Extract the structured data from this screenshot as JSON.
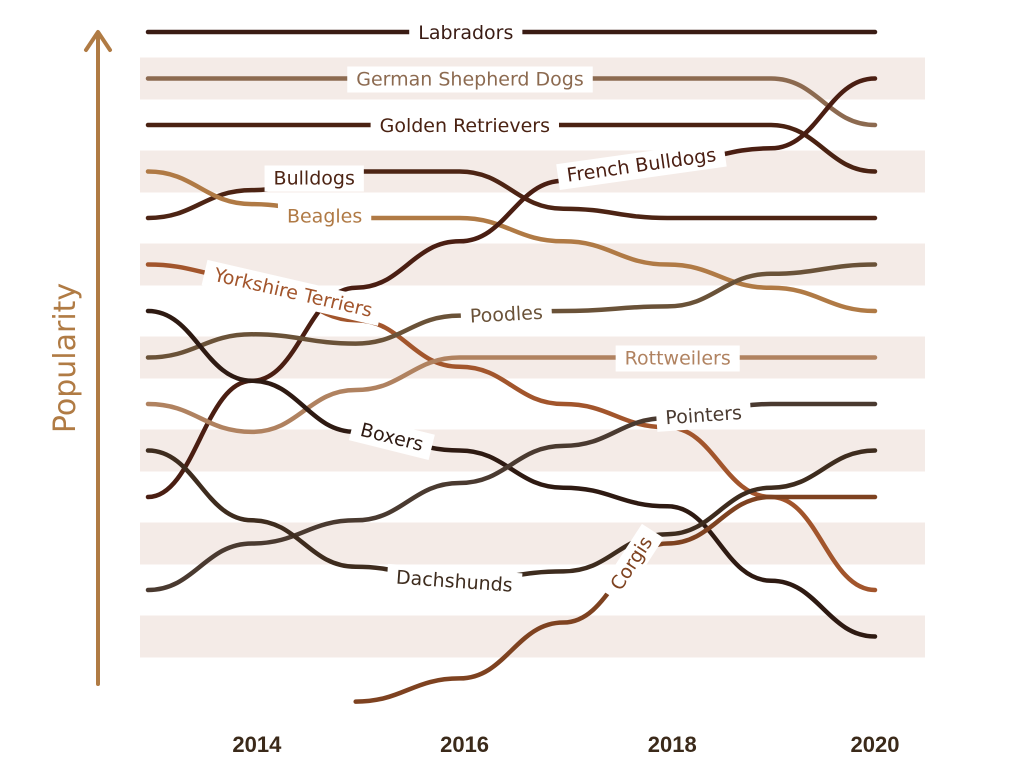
{
  "chart_data": {
    "type": "line",
    "subtype": "bump",
    "ylabel": "Popularity",
    "xlabel": "",
    "x": [
      2013,
      2014,
      2015,
      2016,
      2017,
      2018,
      2019,
      2020
    ],
    "x_ticks": [
      "2014",
      "2016",
      "2018",
      "2020"
    ],
    "x_tick_values": [
      2014,
      2016,
      2018,
      2020
    ],
    "rank_range": [
      1,
      14
    ],
    "y_axis_arrow": true,
    "alternating_bands": true,
    "band_color": "#f4ebe7",
    "axis_color": "#b07b44",
    "tick_color": "#3b2a1a",
    "series": [
      {
        "name": "Labradors",
        "ranks": [
          1,
          1,
          1,
          1,
          1,
          1,
          1,
          1
        ],
        "color": "#3a1c14",
        "label_x": 2016.06,
        "label_angle": 0
      },
      {
        "name": "German Shepherd Dogs",
        "ranks": [
          2,
          2,
          2,
          2,
          2,
          2,
          2,
          3
        ],
        "color": "#8c6a50",
        "label_x": 2016.1,
        "label_angle": 0
      },
      {
        "name": "Golden Retrievers",
        "ranks": [
          3,
          3,
          3,
          3,
          3,
          3,
          3,
          4
        ],
        "color": "#4a2212",
        "label_x": 2016.05,
        "label_angle": 0
      },
      {
        "name": "Bulldogs",
        "ranks": [
          5,
          4.4,
          4,
          4,
          4.8,
          5,
          5,
          5
        ],
        "color": "#4d2414",
        "label_x": 2014.6,
        "label_angle": 0
      },
      {
        "name": "Beagles",
        "ranks": [
          4,
          4.7,
          5,
          5,
          5.5,
          6,
          6.5,
          7
        ],
        "color": "#b07a45",
        "label_x": 2014.7,
        "label_angle": 0
      },
      {
        "name": "French Bulldogs",
        "ranks": [
          11,
          8.5,
          6.5,
          5.5,
          4.2,
          3.8,
          3.5,
          2
        ],
        "color": "#4a1e12",
        "label_x": 2017.75,
        "label_angle": -8
      },
      {
        "name": "Yorkshire Terriers",
        "ranks": [
          6,
          6.3,
          7.2,
          8.2,
          9,
          9.5,
          11,
          13
        ],
        "color": "#a2552c",
        "label_x": 2014.4,
        "label_angle": 13
      },
      {
        "name": "Poodles",
        "ranks": [
          8,
          7.5,
          7.7,
          7.1,
          7,
          6.9,
          6.2,
          6
        ],
        "color": "#6a5238",
        "label_x": 2016.45,
        "label_angle": -3
      },
      {
        "name": "Rottweilers",
        "ranks": [
          9,
          9.6,
          8.7,
          8,
          8,
          8,
          8,
          8
        ],
        "color": "#b08260",
        "label_x": 2018.1,
        "label_angle": 0
      },
      {
        "name": "Boxers",
        "ranks": [
          7,
          8.5,
          9.6,
          10,
          10.8,
          11.2,
          12.8,
          14
        ],
        "color": "#2e1a12",
        "label_x": 2015.35,
        "label_angle": 14
      },
      {
        "name": "Pointers",
        "ranks": [
          13,
          12,
          11.5,
          10.7,
          9.9,
          9.3,
          9,
          9
        ],
        "color": "#4a3a30",
        "label_x": 2018.35,
        "label_angle": -4
      },
      {
        "name": "Dachshunds",
        "ranks": [
          10,
          11.5,
          12.5,
          12.8,
          12.6,
          11.8,
          10.8,
          10
        ],
        "color": "#3e2c1e",
        "label_x": 2015.95,
        "label_angle": 4
      },
      {
        "name": "Corgis",
        "ranks": [
          null,
          null,
          15.4,
          14.9,
          13.7,
          12,
          11,
          11
        ],
        "color": "#7e4220",
        "label_x": 2017.65,
        "label_angle": -57
      }
    ]
  }
}
